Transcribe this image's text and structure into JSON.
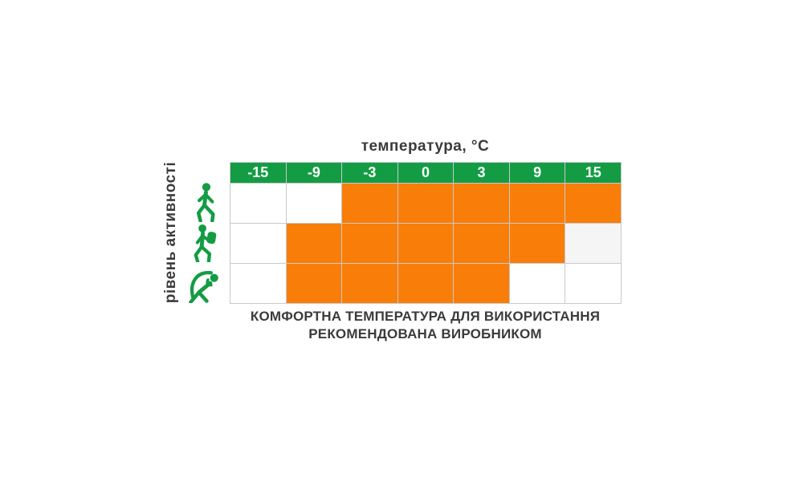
{
  "title": "температура, °C",
  "y_axis_label": "рівень активності",
  "caption": {
    "line1": "КОМФОРТНА ТЕМПЕРАТУРА ДЛЯ ВИКОРИСТАННЯ",
    "line2": "РЕКОМЕНДОВАНА ВИРОБНИКОМ"
  },
  "colors": {
    "header_green": "#149c44",
    "icon_green": "#149c44",
    "comfort_orange": "#f97d09",
    "empty_cell_white": "#ffffff",
    "muted_cell_gray": "#f5f5f5",
    "grid_line_gray": "#c9c9c9",
    "text_dark_gray": "#3b3b3b",
    "header_text_white": "#ffffff",
    "background": "#ffffff"
  },
  "chart_data": {
    "type": "heatmap",
    "title": "температура, °C",
    "xlabel": "температура, °C",
    "ylabel": "рівень активності",
    "columns": [
      "-15",
      "-9",
      "-3",
      "0",
      "3",
      "9",
      "15"
    ],
    "rows": [
      {
        "activity": "walking",
        "icon": "walking-person-icon",
        "cells": [
          "none",
          "none",
          "comfort",
          "comfort",
          "comfort",
          "comfort",
          "comfort"
        ]
      },
      {
        "activity": "hiking-with-backpack",
        "icon": "hiker-person-icon",
        "cells": [
          "none",
          "comfort",
          "comfort",
          "comfort",
          "comfort",
          "comfort",
          "muted"
        ]
      },
      {
        "activity": "exercising",
        "icon": "exercising-person-icon",
        "cells": [
          "none",
          "comfort",
          "comfort",
          "comfort",
          "comfort",
          "none",
          "none"
        ]
      }
    ],
    "cell_state_meaning": {
      "comfort": "comfortable temperature recommended by manufacturer (orange)",
      "none": "not recommended (white)",
      "muted": "borderline (light gray)"
    },
    "legend_position": "none",
    "grid": true
  }
}
